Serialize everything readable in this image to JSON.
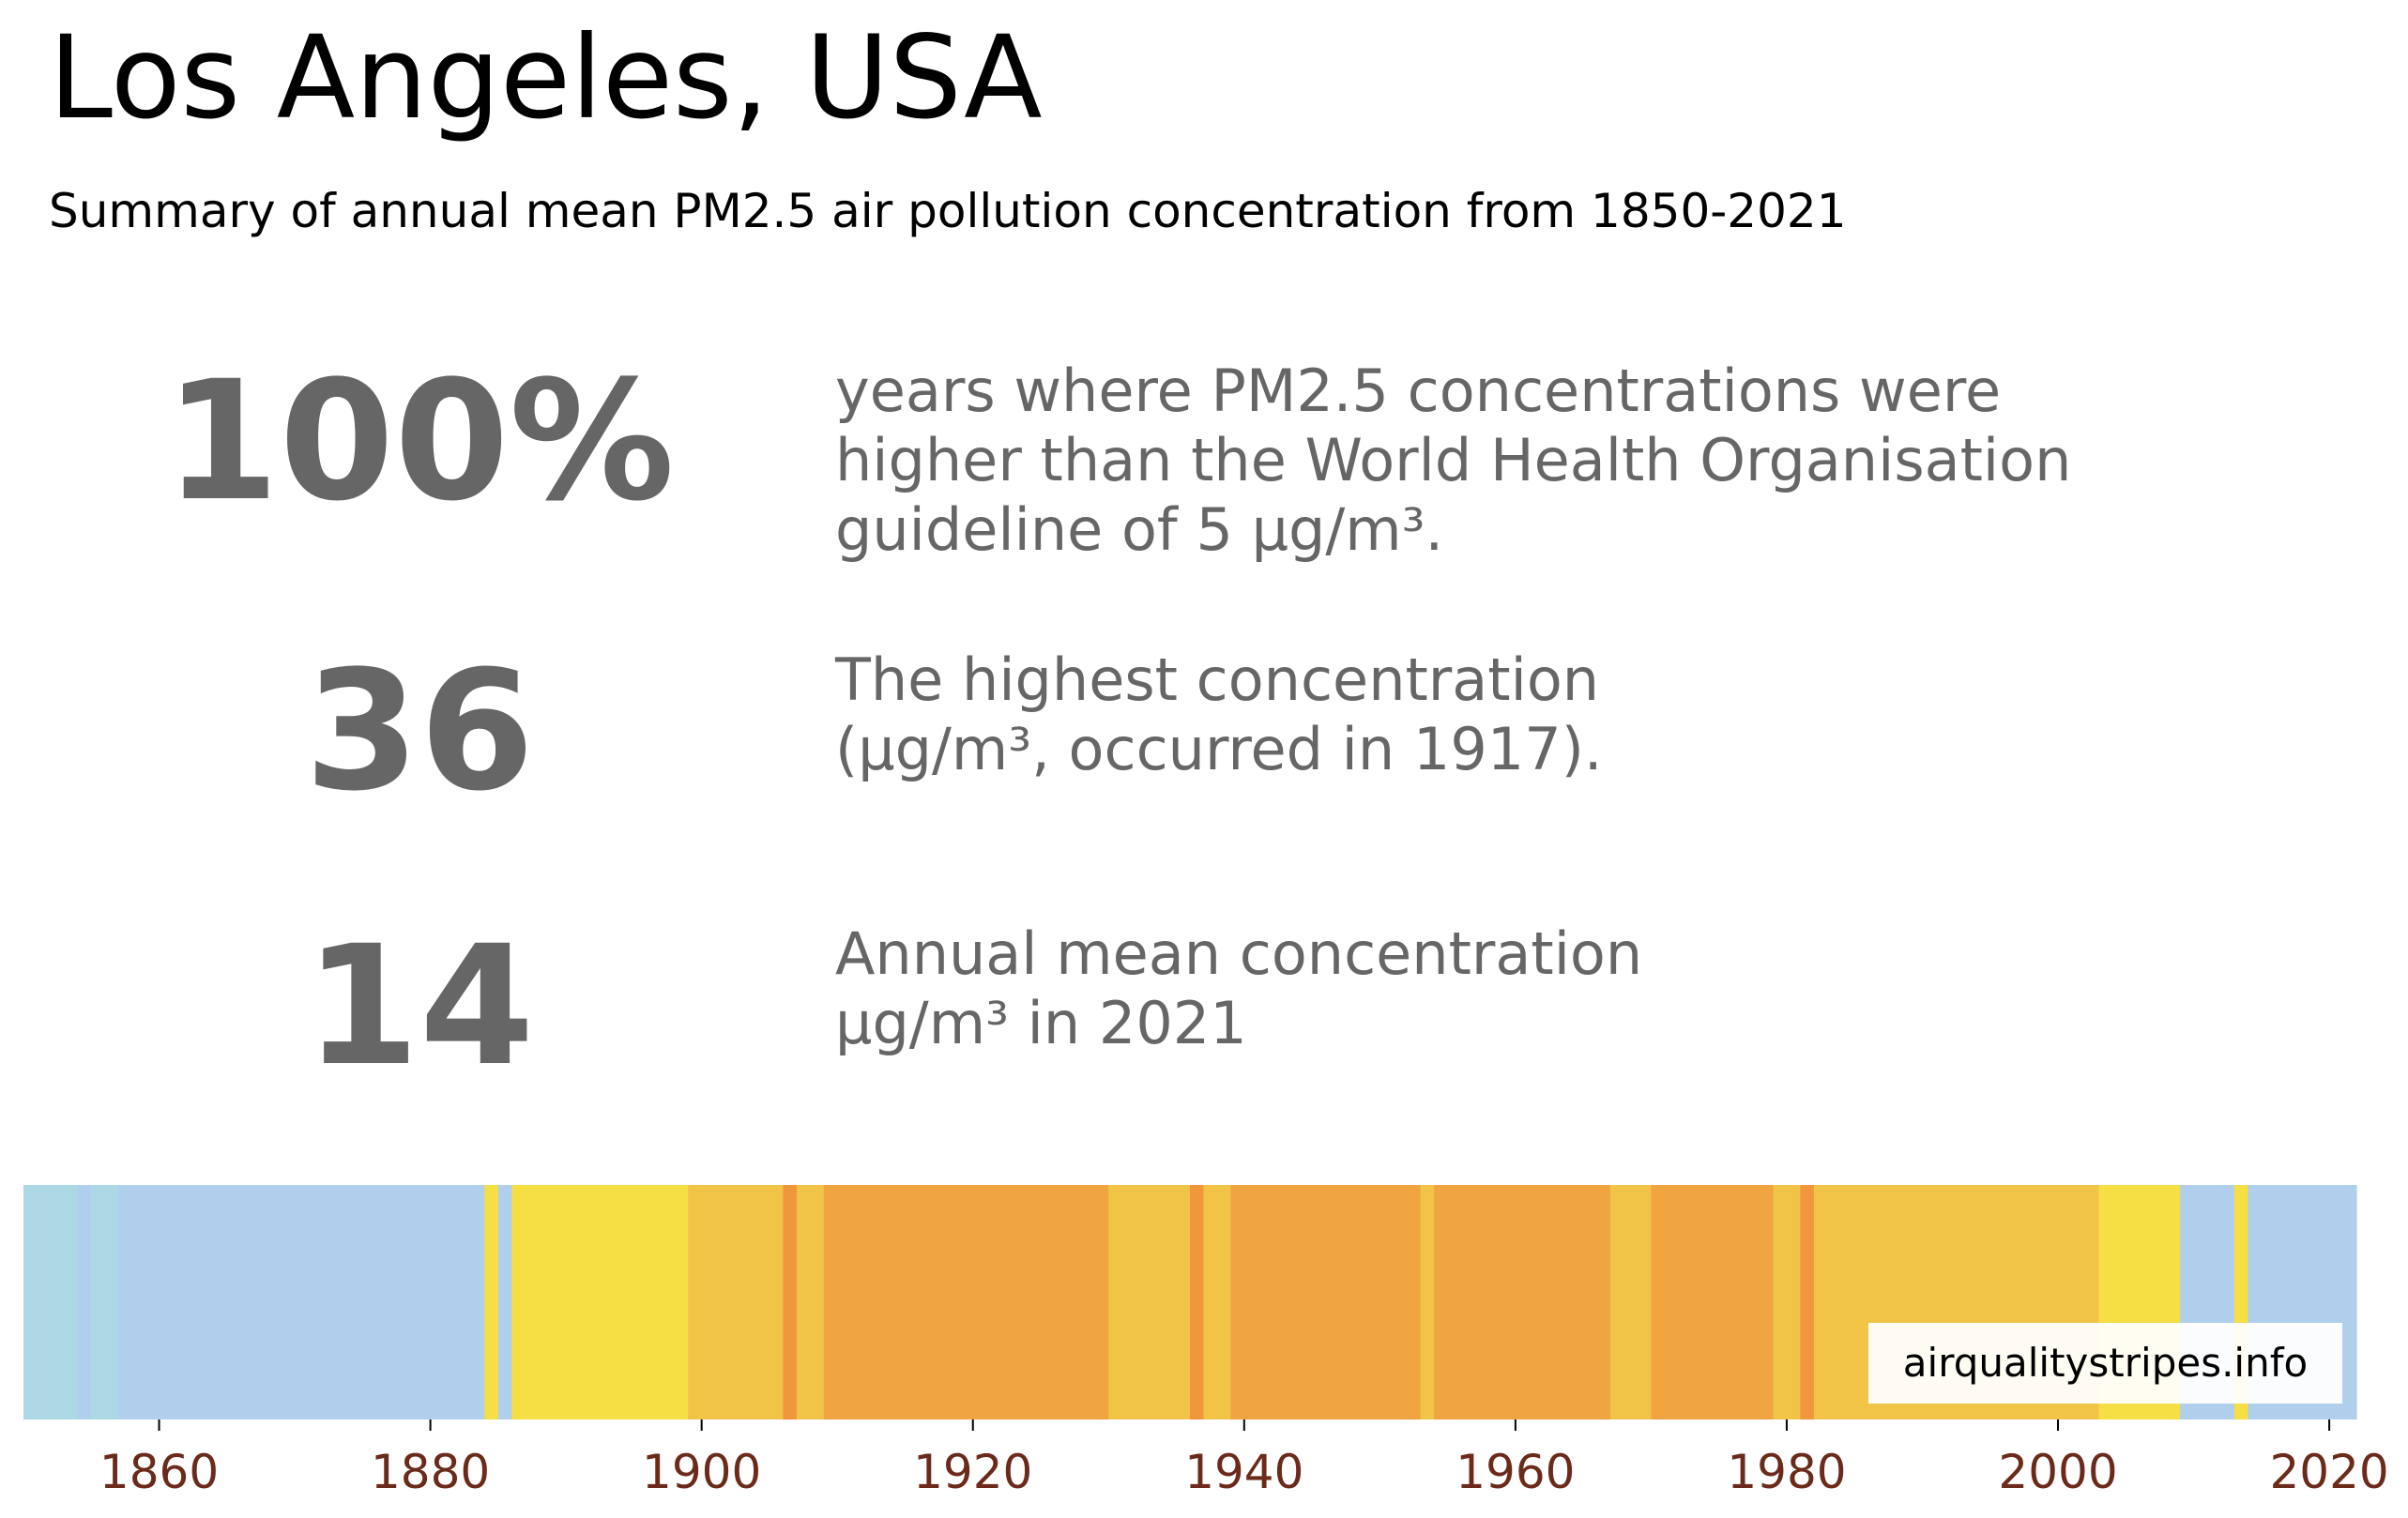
{
  "title": "Los Angeles, USA",
  "subtitle": "Summary of annual mean PM2.5 air pollution concentration from 1850-2021",
  "stats": [
    {
      "value": "100%",
      "lines": [
        "years where PM2.5 concentrations were",
        "higher than the World Health Organisation",
        "guideline of 5 μg/m³."
      ]
    },
    {
      "value": "36",
      "lines": [
        "The highest concentration",
        "(μg/m³, occurred in 1917)."
      ]
    },
    {
      "value": "14",
      "lines": [
        "Annual mean concentration",
        "μg/m³ in 2021"
      ]
    }
  ],
  "source": "airqualitystripes.info",
  "colors": {
    "text_dark": "#000000",
    "text_grey": "#666666",
    "tick_label": "#6b2a1a",
    "stripe_lightblue": "#acd8e6",
    "stripe_blue": "#b0cfed",
    "stripe_yellow": "#f5df45",
    "stripe_lightorange": "#f1c447",
    "stripe_orange": "#f0a540",
    "stripe_darkorange": "#f0963d"
  },
  "chart_data": {
    "type": "heatmap",
    "x_range": [
      1850,
      2022
    ],
    "x_ticks": [
      "1860",
      "1880",
      "1900",
      "1920",
      "1940",
      "1960",
      "1980",
      "2000",
      "2020"
    ],
    "segments": [
      {
        "start": 1850,
        "end": 1854,
        "color": "#acd8e6"
      },
      {
        "start": 1854,
        "end": 1855,
        "color": "#b0cfed"
      },
      {
        "start": 1855,
        "end": 1857,
        "color": "#acd8e6"
      },
      {
        "start": 1857,
        "end": 1884,
        "color": "#b0cfed"
      },
      {
        "start": 1884,
        "end": 1885,
        "color": "#f5df45"
      },
      {
        "start": 1885,
        "end": 1886,
        "color": "#b0cfed"
      },
      {
        "start": 1886,
        "end": 1899,
        "color": "#f5df45"
      },
      {
        "start": 1899,
        "end": 1906,
        "color": "#f1c447"
      },
      {
        "start": 1906,
        "end": 1907,
        "color": "#f0963d"
      },
      {
        "start": 1907,
        "end": 1909,
        "color": "#f1c447"
      },
      {
        "start": 1909,
        "end": 1930,
        "color": "#f0a540"
      },
      {
        "start": 1930,
        "end": 1936,
        "color": "#f1c447"
      },
      {
        "start": 1936,
        "end": 1937,
        "color": "#f0963d"
      },
      {
        "start": 1937,
        "end": 1939,
        "color": "#f1c447"
      },
      {
        "start": 1939,
        "end": 1953,
        "color": "#f0a540"
      },
      {
        "start": 1953,
        "end": 1954,
        "color": "#f1c447"
      },
      {
        "start": 1954,
        "end": 1967,
        "color": "#f0a540"
      },
      {
        "start": 1967,
        "end": 1970,
        "color": "#f1c447"
      },
      {
        "start": 1970,
        "end": 1979,
        "color": "#f0a540"
      },
      {
        "start": 1979,
        "end": 1981,
        "color": "#f1c447"
      },
      {
        "start": 1981,
        "end": 1982,
        "color": "#f0963d"
      },
      {
        "start": 1982,
        "end": 2003,
        "color": "#f1c447"
      },
      {
        "start": 2003,
        "end": 2009,
        "color": "#f5df45"
      },
      {
        "start": 2009,
        "end": 2013,
        "color": "#b0cfed"
      },
      {
        "start": 2013,
        "end": 2014,
        "color": "#f5df45"
      },
      {
        "start": 2014,
        "end": 2022,
        "color": "#b0cfed"
      }
    ]
  }
}
